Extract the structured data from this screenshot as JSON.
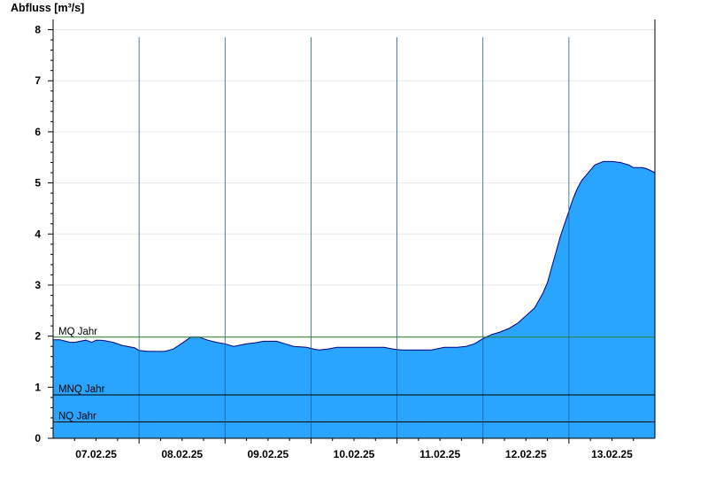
{
  "chart_data": {
    "type": "area",
    "ylabel": "Abfluss [m³/s]",
    "xlabel": "",
    "title": "",
    "ylim": [
      0,
      8.2
    ],
    "yticks": [
      "0",
      "1",
      "2",
      "3",
      "4",
      "5",
      "6",
      "7",
      "8"
    ],
    "x_range_days": [
      0,
      7
    ],
    "day_ticks": [
      "07.02.25",
      "08.02.25",
      "09.02.25",
      "10.02.25",
      "11.02.25",
      "12.02.25",
      "13.02.25"
    ],
    "grid": true,
    "colors": {
      "fill": "#2aa5ff",
      "line": "#000080",
      "mq_line": "#2e7d32",
      "ref_line": "#000000",
      "grid": "#e6e6e6",
      "day_separator": "#1f5f9a"
    },
    "series": [
      {
        "x": [
          0.0,
          0.08,
          0.2,
          0.25,
          0.38,
          0.45,
          0.5,
          0.55,
          0.6,
          0.7,
          0.8,
          0.95,
          1.0,
          1.1,
          1.15,
          1.3,
          1.4,
          1.5,
          1.6,
          1.7,
          1.8,
          1.9,
          2.0,
          2.1,
          2.25,
          2.35,
          2.45,
          2.6,
          2.7,
          2.8,
          2.95,
          3.0,
          3.05,
          3.1,
          3.2,
          3.3,
          3.4,
          3.5,
          3.6,
          3.7,
          3.85,
          3.95,
          4.05,
          4.2,
          4.4,
          4.55,
          4.7,
          4.8,
          4.9,
          5.0,
          5.1,
          5.2,
          5.3,
          5.4,
          5.5,
          5.6,
          5.65,
          5.7,
          5.75,
          5.8,
          5.85,
          5.9,
          5.95,
          6.0,
          6.05,
          6.1,
          6.15,
          6.2,
          6.25,
          6.3,
          6.4,
          6.5,
          6.6,
          6.7,
          6.75,
          6.85,
          6.9,
          7.0
        ],
        "y": [
          1.93,
          1.93,
          1.88,
          1.88,
          1.92,
          1.88,
          1.92,
          1.92,
          1.91,
          1.88,
          1.82,
          1.77,
          1.72,
          1.7,
          1.7,
          1.7,
          1.75,
          1.86,
          1.98,
          1.98,
          1.92,
          1.88,
          1.85,
          1.8,
          1.85,
          1.87,
          1.9,
          1.9,
          1.85,
          1.8,
          1.78,
          1.76,
          1.74,
          1.73,
          1.75,
          1.78,
          1.78,
          1.78,
          1.78,
          1.78,
          1.78,
          1.75,
          1.73,
          1.73,
          1.73,
          1.78,
          1.78,
          1.8,
          1.85,
          1.95,
          2.03,
          2.08,
          2.15,
          2.25,
          2.4,
          2.55,
          2.7,
          2.85,
          3.05,
          3.35,
          3.65,
          3.95,
          4.2,
          4.45,
          4.7,
          4.9,
          5.05,
          5.15,
          5.25,
          5.35,
          5.42,
          5.42,
          5.4,
          5.35,
          5.3,
          5.3,
          5.28,
          5.2
        ]
      }
    ],
    "reference_lines": [
      {
        "label": "MQ Jahr",
        "value": 1.98
      },
      {
        "label": "MNQ Jahr",
        "value": 0.85
      },
      {
        "label": "NQ Jahr",
        "value": 0.32
      }
    ]
  }
}
